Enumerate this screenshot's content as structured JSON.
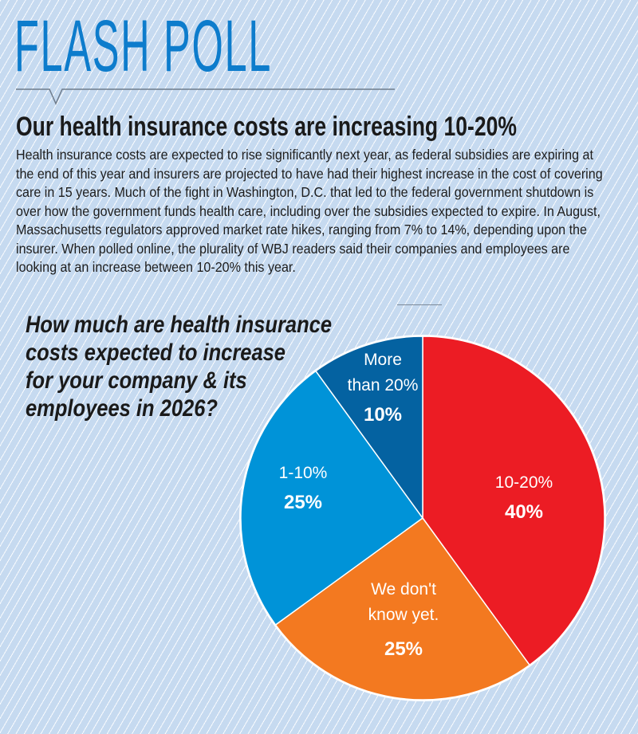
{
  "header": {
    "title": "FLASH POLL"
  },
  "headline": "Our health insurance costs are increasing 10-20%",
  "body_text": "Health insurance costs are expected to rise significantly next year, as federal subsidies are expiring at the end of this year and insurers are projected to have had their highest increase in the cost of covering care in 15 years. Much of the fight in Washington, D.C. that led to the federal government shutdown is over how the government funds health care, including over the subsidies expected to expire. In August, Massachusetts regulators approved market rate hikes, ranging from 7% to 14%, depending upon the insurer. When polled online, the plurality of WBJ readers said their companies and employees are looking at an increase between 10-20% this year.",
  "question_lines": [
    "How much are health insurance",
    "costs expected to increase",
    "for your company & its",
    "employees in 2026?"
  ],
  "colors": {
    "title": "#0d7ccc",
    "background": "#c6daf0"
  },
  "chart_data": {
    "type": "pie",
    "title": "How much are health insurance costs expected to increase for your company & its employees in 2026?",
    "slices": [
      {
        "label": "10-20%",
        "value": 40,
        "value_label": "40%",
        "color": "#ec1c24"
      },
      {
        "label": "We don't know yet.",
        "value": 25,
        "value_label": "25%",
        "color": "#f37920"
      },
      {
        "label": "1-10%",
        "value": 25,
        "value_label": "25%",
        "color": "#0093d8"
      },
      {
        "label": "More than 20%",
        "value": 10,
        "value_label": "10%",
        "color": "#0462a1"
      }
    ],
    "start": "top",
    "direction": "clockwise"
  }
}
